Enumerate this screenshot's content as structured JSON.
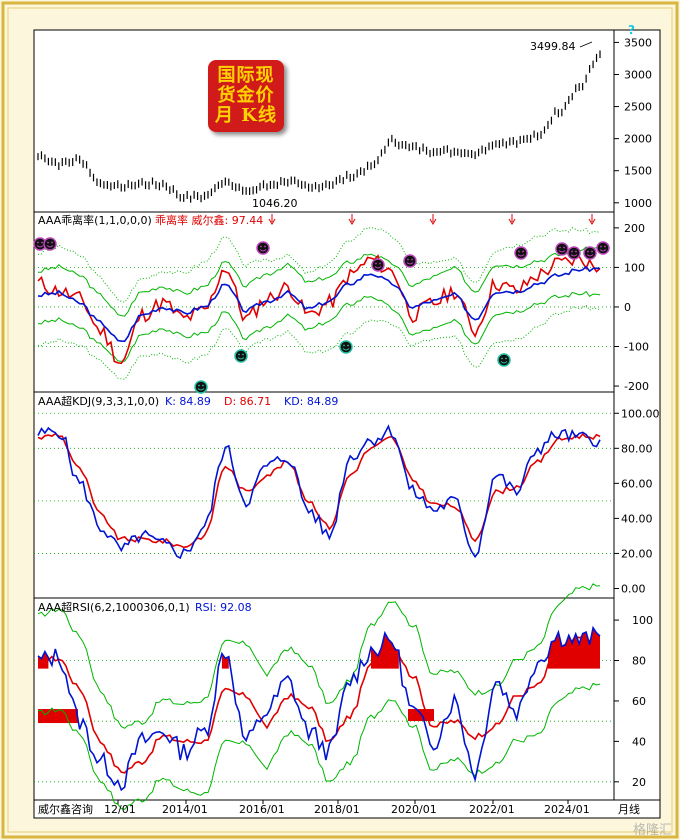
{
  "title_lines": [
    "国际现",
    "货金价",
    "月 K线"
  ],
  "colors": {
    "frame": "#d8b640",
    "price": "#000000",
    "red": "#e00000",
    "blue": "#0014d2",
    "green": "#00b400",
    "grid": "#00aa00"
  },
  "price_panel": {
    "type": "ohlc",
    "high_annotation": "3499.84",
    "low_annotation": "1046.20",
    "axis_labels": [
      "3500",
      "3000",
      "2500",
      "2000",
      "1500",
      "1000"
    ],
    "ylim": [
      950,
      3600
    ],
    "question_mark": "?"
  },
  "bias_panel": {
    "header": "AAA乖离率(1,1,0,0,0)",
    "series_label": "乖离率 威尔鑫: 97.44",
    "axis_labels": [
      "200",
      "100",
      "0",
      "-100",
      "-200"
    ],
    "ylim": [
      -210,
      230
    ]
  },
  "kdj_panel": {
    "header": "AAA超KDJ(9,3,3,1,0,0)",
    "k_label": "K: 84.89",
    "d_label": "D: 86.71",
    "kd_label": "KD: 84.89",
    "axis_labels": [
      "100.00",
      "80.00",
      "60.00",
      "40.00",
      "20.00",
      "0.00"
    ],
    "ylim": [
      -2,
      103
    ]
  },
  "rsi_panel": {
    "header": "AAA超RSI(6,2,1000306,0,1)",
    "rsi_label": "RSI: 92.08",
    "axis_labels": [
      "100",
      "80",
      "60",
      "40",
      "20"
    ],
    "ylim": [
      12,
      104
    ]
  },
  "x_axis": {
    "ticks": [
      "12/01",
      "2014/01",
      "2016/01",
      "2018/01",
      "2020/01",
      "2022/01",
      "2024/01"
    ],
    "left_label": "威尔鑫咨询",
    "right_label": "月线"
  },
  "watermark": "格隆汇",
  "chart_data": [
    {
      "type": "line",
      "title": "国际现货金价 月K线",
      "x": [
        "2012-01",
        "2012-07",
        "2013-01",
        "2013-07",
        "2014-01",
        "2014-07",
        "2015-01",
        "2015-07",
        "2016-01",
        "2016-07",
        "2017-01",
        "2017-07",
        "2018-01",
        "2018-07",
        "2019-01",
        "2019-07",
        "2020-01",
        "2020-07",
        "2021-01",
        "2021-07",
        "2022-01",
        "2022-07",
        "2023-01",
        "2023-07",
        "2024-01",
        "2024-07",
        "2025-01",
        "2025-04"
      ],
      "series": [
        {
          "values": [
            1740,
            1610,
            1670,
            1300,
            1250,
            1300,
            1280,
            1090,
            1100,
            1340,
            1170,
            1270,
            1340,
            1230,
            1290,
            1410,
            1560,
            1960,
            1860,
            1810,
            1800,
            1770,
            1930,
            1960,
            2030,
            2420,
            2800,
            3300
          ]
        }
      ],
      "annotations": [
        "3499.84",
        "1046.20"
      ],
      "ylim": [
        950,
        3600
      ]
    },
    {
      "type": "line",
      "title": "AAA乖离率(1,1,0,0,0)",
      "series": [
        {
          "name": "乖离率",
          "values": [
            60,
            40,
            20,
            -60,
            -140,
            -20,
            10,
            -30,
            -10,
            100,
            -30,
            20,
            50,
            -20,
            10,
            80,
            120,
            90,
            -20,
            10,
            40,
            -60,
            60,
            40,
            80,
            110,
            120,
            97.44
          ]
        },
        {
          "name": "威尔鑫",
          "values": [
            30,
            35,
            10,
            -40,
            -90,
            -20,
            0,
            -15,
            0,
            55,
            -10,
            15,
            35,
            -5,
            15,
            60,
            85,
            60,
            0,
            15,
            30,
            -30,
            40,
            40,
            60,
            80,
            95,
            97
          ]
        }
      ],
      "ylim": [
        -210,
        230
      ]
    },
    {
      "type": "line",
      "title": "AAA超KDJ(9,3,3,1,0,0)",
      "series": [
        {
          "name": "K",
          "values": [
            88,
            90,
            60,
            35,
            22,
            30,
            25,
            20,
            35,
            80,
            50,
            70,
            75,
            45,
            30,
            75,
            85,
            90,
            55,
            45,
            50,
            20,
            65,
            55,
            80,
            88,
            86,
            84.89
          ]
        },
        {
          "name": "D",
          "values": [
            86,
            88,
            68,
            42,
            28,
            28,
            27,
            24,
            30,
            70,
            55,
            65,
            72,
            50,
            35,
            65,
            80,
            86,
            62,
            48,
            47,
            28,
            55,
            58,
            72,
            85,
            87,
            86.71
          ]
        }
      ],
      "ylim": [
        -2,
        103
      ]
    },
    {
      "type": "line",
      "title": "AAA超RSI(6,2,1000306,0,1)",
      "series": [
        {
          "name": "RSI",
          "values": [
            80,
            82,
            50,
            30,
            20,
            40,
            45,
            35,
            45,
            85,
            40,
            55,
            70,
            45,
            35,
            70,
            85,
            90,
            55,
            40,
            60,
            25,
            70,
            55,
            80,
            92,
            90,
            92.08
          ]
        }
      ],
      "ylim": [
        12,
        104
      ]
    }
  ]
}
